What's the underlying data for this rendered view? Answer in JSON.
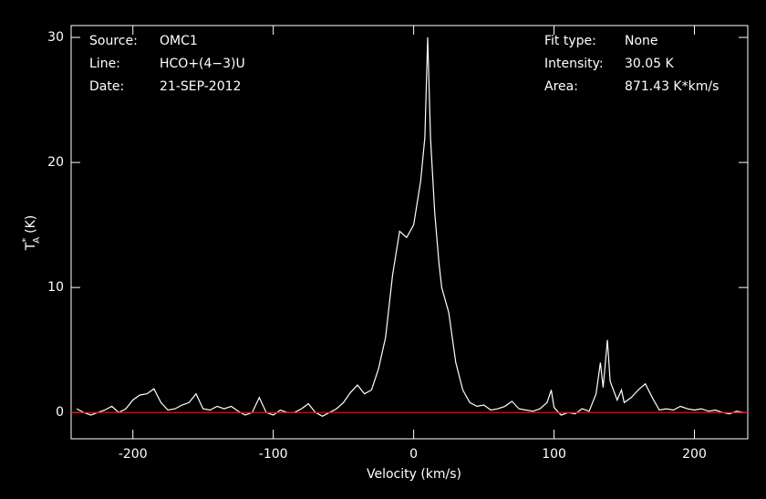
{
  "chart_data": {
    "type": "line",
    "xlabel": "Velocity (km/s)",
    "ylabel": {
      "main": "T",
      "sub": "A",
      "sup": "*",
      "unit": "(K)"
    },
    "annotations_left": [
      {
        "label": "Source:",
        "value": "OMC1"
      },
      {
        "label": "Line:",
        "value": "HCO+(4−3)U"
      },
      {
        "label": "Date:",
        "value": "21-SEP-2012"
      }
    ],
    "annotations_right": [
      {
        "label": "Fit type:",
        "value": "None"
      },
      {
        "label": "Intensity:",
        "value": "30.05 K"
      },
      {
        "label": "Area:",
        "value": "871.43 K*km/s"
      }
    ],
    "x": [
      -240,
      -235,
      -230,
      -225,
      -220,
      -215,
      -210,
      -205,
      -200,
      -195,
      -190,
      -185,
      -180,
      -175,
      -170,
      -165,
      -160,
      -155,
      -150,
      -145,
      -140,
      -135,
      -130,
      -125,
      -120,
      -115,
      -110,
      -105,
      -100,
      -95,
      -90,
      -85,
      -80,
      -75,
      -70,
      -65,
      -60,
      -55,
      -50,
      -45,
      -40,
      -35,
      -30,
      -25,
      -20,
      -15,
      -10,
      -5,
      0,
      5,
      8,
      10,
      12,
      15,
      18,
      20,
      25,
      30,
      35,
      40,
      45,
      50,
      55,
      60,
      65,
      70,
      75,
      80,
      85,
      90,
      95,
      98,
      100,
      105,
      110,
      115,
      120,
      125,
      130,
      133,
      135,
      138,
      140,
      145,
      148,
      150,
      155,
      160,
      165,
      170,
      175,
      180,
      185,
      190,
      195,
      200,
      205,
      210,
      215,
      220,
      225,
      230,
      235
    ],
    "series": [
      {
        "color": "#ffffff",
        "values": [
          0.3,
          0,
          -0.2,
          0,
          0.2,
          0.5,
          0,
          0.3,
          1.0,
          1.4,
          1.5,
          1.9,
          0.8,
          0.2,
          0.3,
          0.6,
          0.8,
          1.5,
          0.3,
          0.2,
          0.5,
          0.3,
          0.5,
          0.1,
          -0.2,
          0,
          1.2,
          0,
          -0.2,
          0.2,
          0,
          0,
          0.3,
          0.7,
          0,
          -0.3,
          0,
          0.3,
          0.8,
          1.6,
          2.2,
          1.5,
          1.8,
          3.5,
          6,
          11,
          14.5,
          14,
          15,
          18.5,
          22,
          30,
          22,
          16,
          12,
          10,
          8,
          4,
          1.8,
          0.8,
          0.5,
          0.6,
          0.2,
          0.3,
          0.5,
          0.9,
          0.3,
          0.2,
          0.1,
          0.3,
          0.8,
          1.8,
          0.4,
          -0.2,
          0,
          -0.1,
          0.3,
          0.1,
          1.5,
          4,
          2,
          5.8,
          2.5,
          1,
          1.8,
          0.8,
          1.2,
          1.8,
          2.3,
          1.2,
          0.2,
          0.3,
          0.2,
          0.5,
          0.3,
          0.2,
          0.3,
          0.1,
          0.2,
          0,
          -0.1,
          0.1,
          0
        ]
      }
    ],
    "hline": {
      "value": 0,
      "color": "#ff0000"
    },
    "xlim": [
      -244,
      238
    ],
    "xticks": [
      -200,
      -100,
      0,
      100,
      200
    ],
    "ylim": [
      -2.1,
      30.95
    ],
    "yticks": [
      0,
      10,
      20,
      30
    ]
  }
}
